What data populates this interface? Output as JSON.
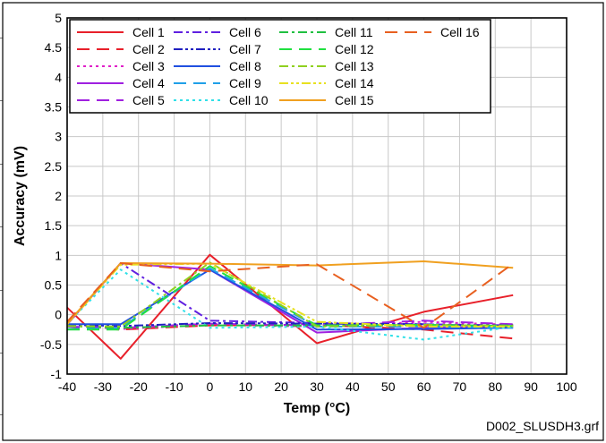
{
  "chart_data": {
    "type": "line",
    "title": "",
    "xlabel": "Temp (°C)",
    "ylabel": "Accuracy (mV)",
    "xlim": [
      -40,
      100
    ],
    "ylim": [
      -1,
      5
    ],
    "xticks": [
      -40,
      -30,
      -20,
      -10,
      0,
      10,
      20,
      30,
      40,
      50,
      60,
      70,
      80,
      90,
      100
    ],
    "yticks": [
      -1,
      -0.5,
      0,
      0.5,
      1,
      1.5,
      2,
      2.5,
      3,
      3.5,
      4,
      4.5,
      5
    ],
    "xtick_labels": [
      "-40",
      "-30",
      "-20",
      "-10",
      "0",
      "10",
      "20",
      "30",
      "40",
      "50",
      "60",
      "70",
      "80",
      "90",
      "100"
    ],
    "ytick_labels": [
      "-1",
      "-0.5",
      "0",
      "0.5",
      "1",
      "1.5",
      "2",
      "2.5",
      "3",
      "3.5",
      "4",
      "4.5",
      "5"
    ],
    "grid": true,
    "legend_position": "top-left",
    "series": [
      {
        "name": "Cell 1",
        "color": "#e8202a",
        "dash": "solid",
        "x": [
          -40,
          -25,
          0,
          30,
          60,
          85
        ],
        "y": [
          0.12,
          -0.74,
          1.01,
          -0.48,
          0.05,
          0.33
        ]
      },
      {
        "name": "Cell 2",
        "color": "#e8202a",
        "dash": "longdash",
        "x": [
          -40,
          -25,
          0,
          30,
          60,
          85
        ],
        "y": [
          -0.2,
          -0.25,
          -0.18,
          -0.17,
          -0.25,
          -0.4
        ]
      },
      {
        "name": "Cell 3",
        "color": "#e020c8",
        "dash": "dot",
        "x": [
          -40,
          -25,
          0,
          30,
          60,
          85
        ],
        "y": [
          -0.18,
          -0.24,
          -0.17,
          -0.2,
          -0.12,
          -0.17
        ]
      },
      {
        "name": "Cell 4",
        "color": "#a020e0",
        "dash": "solid",
        "x": [
          -40,
          -25,
          0,
          30,
          60,
          85
        ],
        "y": [
          -0.17,
          0.87,
          0.76,
          -0.3,
          -0.22,
          -0.2
        ]
      },
      {
        "name": "Cell 5",
        "color": "#a020e0",
        "dash": "longdash",
        "x": [
          -40,
          -25,
          0,
          30,
          60,
          85
        ],
        "y": [
          -0.2,
          -0.22,
          -0.15,
          -0.18,
          -0.1,
          -0.16
        ]
      },
      {
        "name": "Cell 6",
        "color": "#6020e0",
        "dash": "dashdot",
        "x": [
          -40,
          -25,
          0,
          30,
          60,
          85
        ],
        "y": [
          -0.16,
          0.87,
          -0.1,
          -0.14,
          -0.16,
          -0.18
        ]
      },
      {
        "name": "Cell 7",
        "color": "#2020c0",
        "dash": "dashdotdot",
        "x": [
          -40,
          -25,
          0,
          30,
          60,
          85
        ],
        "y": [
          -0.17,
          -0.19,
          -0.14,
          -0.15,
          -0.16,
          -0.2
        ]
      },
      {
        "name": "Cell 8",
        "color": "#2050e0",
        "dash": "solid",
        "x": [
          -40,
          -25,
          0,
          30,
          60,
          85
        ],
        "y": [
          -0.16,
          -0.16,
          0.76,
          -0.25,
          -0.24,
          -0.22
        ]
      },
      {
        "name": "Cell 9",
        "color": "#20a0e8",
        "dash": "longdash",
        "x": [
          -40,
          -25,
          0,
          30,
          60,
          85
        ],
        "y": [
          -0.24,
          -0.22,
          0.78,
          -0.2,
          -0.2,
          -0.22
        ]
      },
      {
        "name": "Cell 10",
        "color": "#30e0e8",
        "dash": "dot",
        "x": [
          -40,
          -25,
          0,
          30,
          60,
          85
        ],
        "y": [
          -0.15,
          0.76,
          -0.22,
          -0.2,
          -0.42,
          -0.2
        ]
      },
      {
        "name": "Cell 11",
        "color": "#20c040",
        "dash": "dashdot",
        "x": [
          -40,
          -25,
          0,
          30,
          60,
          85
        ],
        "y": [
          -0.19,
          -0.22,
          -0.18,
          -0.18,
          -0.18,
          -0.18
        ]
      },
      {
        "name": "Cell 12",
        "color": "#20e040",
        "dash": "longdash",
        "x": [
          -40,
          -25,
          0,
          30,
          60,
          85
        ],
        "y": [
          -0.25,
          -0.25,
          0.82,
          -0.18,
          -0.17,
          -0.19
        ]
      },
      {
        "name": "Cell 13",
        "color": "#90d020",
        "dash": "dashdot",
        "x": [
          -40,
          -25,
          0,
          30,
          60,
          85
        ],
        "y": [
          -0.19,
          -0.2,
          0.88,
          -0.2,
          -0.17,
          -0.19
        ]
      },
      {
        "name": "Cell 14",
        "color": "#e8e020",
        "dash": "dashdotdot",
        "x": [
          -40,
          -25,
          0,
          30,
          60,
          85
        ],
        "y": [
          -0.16,
          0.84,
          0.86,
          -0.12,
          -0.2,
          -0.2
        ]
      },
      {
        "name": "Cell 15",
        "color": "#f0a020",
        "dash": "solid",
        "x": [
          -40,
          -25,
          0,
          30,
          60,
          85
        ],
        "y": [
          -0.15,
          0.87,
          0.86,
          0.83,
          0.9,
          0.79
        ]
      },
      {
        "name": "Cell 16",
        "color": "#e86020",
        "dash": "longdash",
        "x": [
          -40,
          -25,
          0,
          30,
          60,
          85
        ],
        "y": [
          -0.12,
          0.87,
          0.73,
          0.85,
          -0.22,
          0.86
        ]
      }
    ]
  },
  "footer": {
    "file_label": "D002_SLUSDH3.grf"
  }
}
